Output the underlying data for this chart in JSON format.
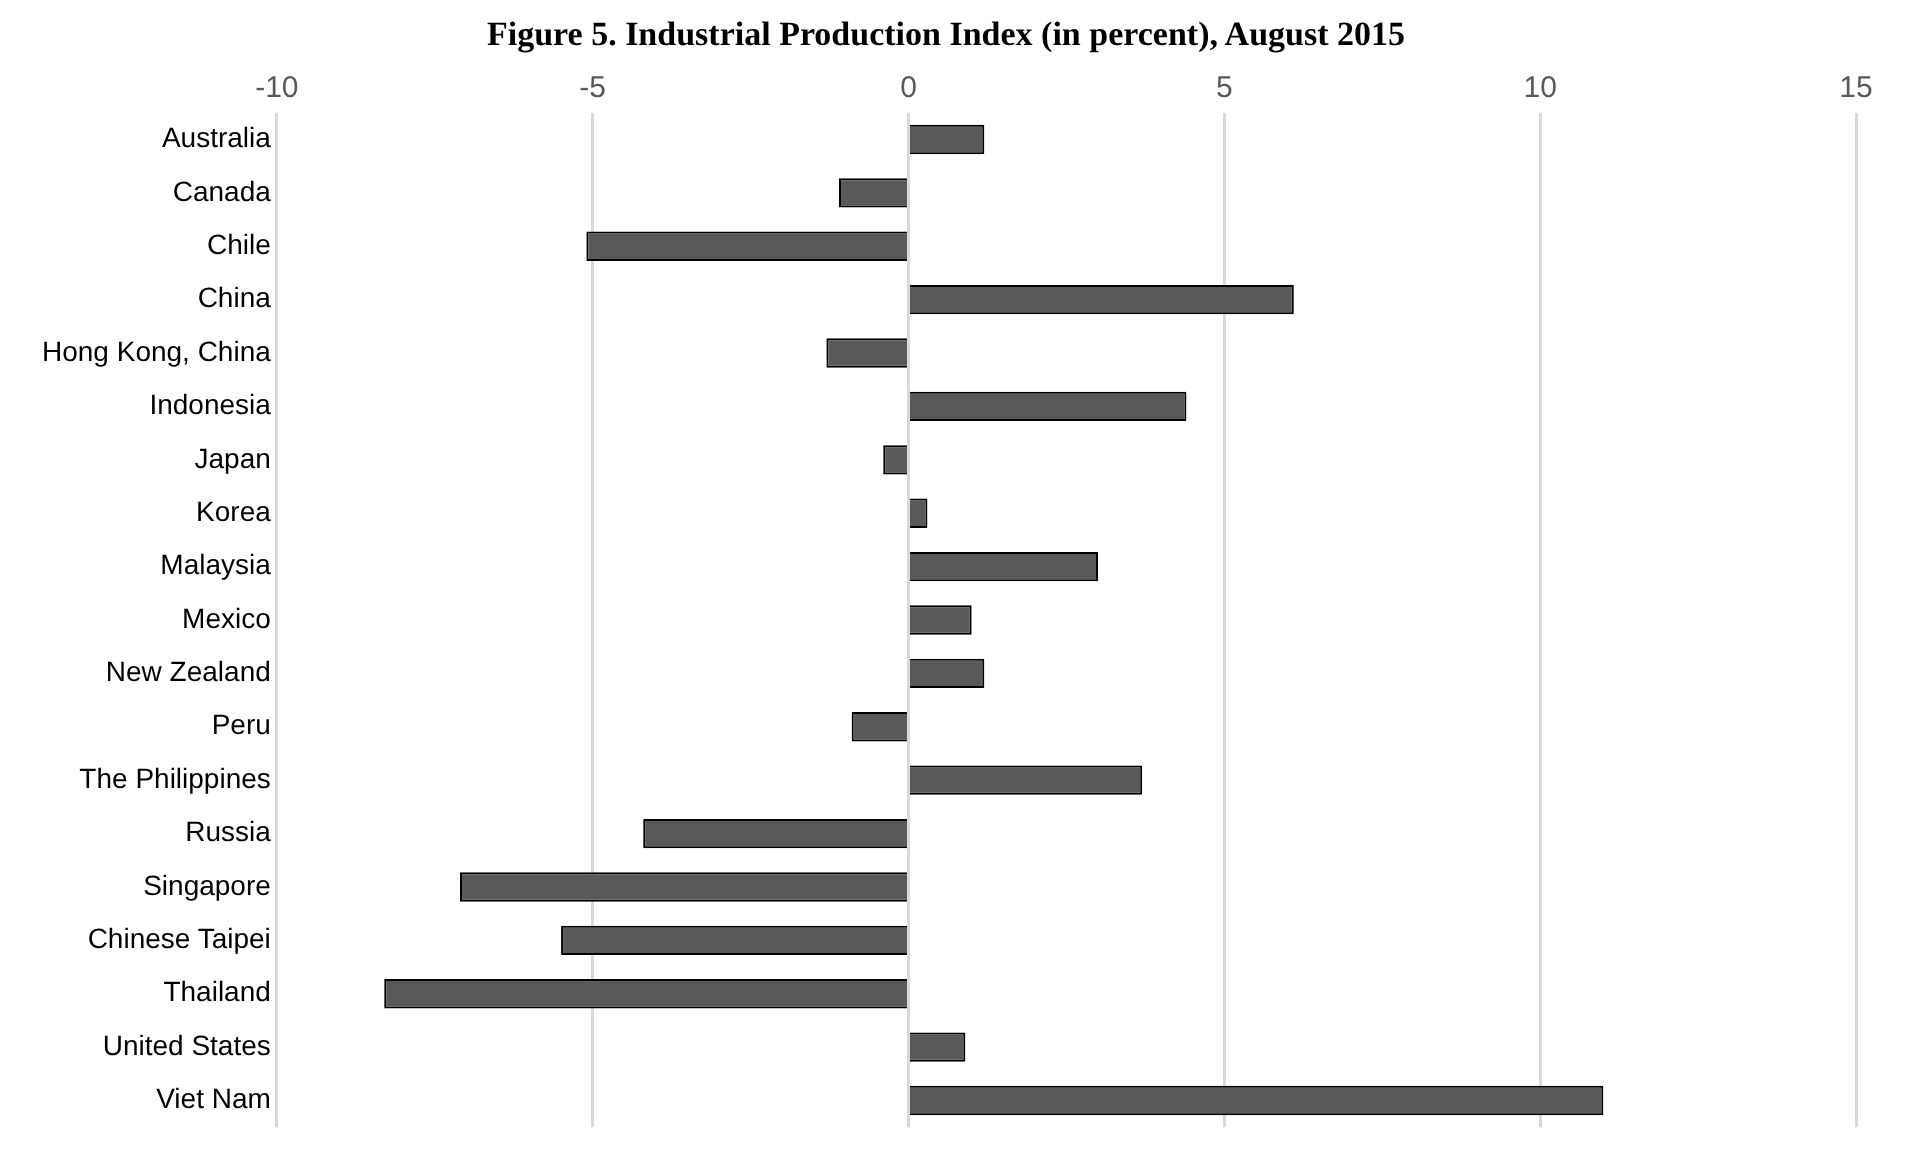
{
  "chart_data": {
    "type": "bar",
    "orientation": "horizontal",
    "title": "Figure 5. Industrial Production Index (in percent), August 2015",
    "categories": [
      "Australia",
      "Canada",
      "Chile",
      "China",
      "Hong Kong, China",
      "Indonesia",
      "Japan",
      "Korea",
      "Malaysia",
      "Mexico",
      "New Zealand",
      "Peru",
      "The Philippines",
      "Russia",
      "Singapore",
      "Chinese Taipei",
      "Thailand",
      "United States",
      "Viet Nam"
    ],
    "values": [
      1.2,
      -1.1,
      -5.1,
      6.1,
      -1.3,
      4.4,
      -0.4,
      0.3,
      3.0,
      1.0,
      1.2,
      -0.9,
      3.7,
      -4.2,
      -7.1,
      -5.5,
      -8.3,
      0.9,
      11.0
    ],
    "color": "#595959",
    "xlim": [
      -10,
      15
    ],
    "xticks": [
      -10,
      -5,
      0,
      5,
      10,
      15
    ],
    "grid": "x",
    "legend": false
  }
}
